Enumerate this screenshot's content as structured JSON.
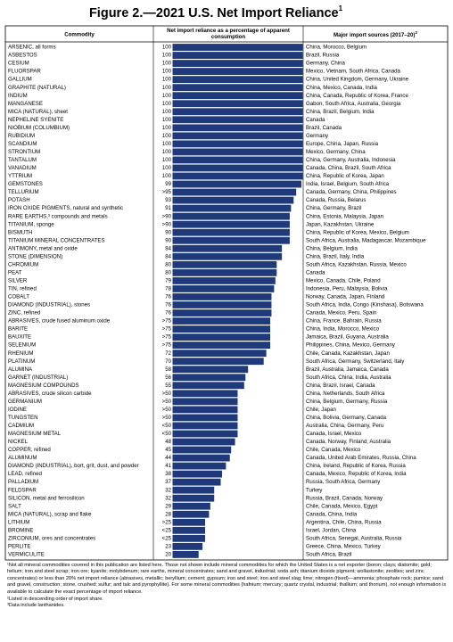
{
  "chart_data": {
    "type": "hbar",
    "title": "Figure 2.—2021 U.S. Net Import Reliance",
    "title_note": "1",
    "column_headers": {
      "commodity": "Commodity",
      "value": "Net import reliance as a percentage of apparent consumption",
      "sources": "Major import sources (2017–20)",
      "sources_note": "2"
    },
    "color": "#1f3a7a",
    "xlim": [
      0,
      100
    ],
    "categories": [
      "ARSENIC, all forms",
      "ASBESTOS",
      "CESIUM",
      "FLUORSPAR",
      "GALLIUM",
      "GRAPHITE (NATURAL)",
      "INDIUM",
      "MANGANESE",
      "MICA (NATURAL), sheet",
      "NEPHELINE SYENITE",
      "NIOBIUM (COLUMBIUM)",
      "RUBIDIUM",
      "SCANDIUM",
      "STRONTIUM",
      "TANTALUM",
      "VANADIUM",
      "YTTRIUM",
      "GEMSTONES",
      "TELLURIUM",
      "POTASH",
      "IRON OXIDE PIGMENTS, natural and synthetic",
      "RARE EARTHS,³ compounds and metals",
      "TITANIUM, sponge",
      "BISMUTH",
      "TITANIUM MINERAL CONCENTRATES",
      "ANTIMONY, metal and oxide",
      "STONE (DIMENSION)",
      "CHROMIUM",
      "PEAT",
      "SILVER",
      "TIN, refined",
      "COBALT",
      "DIAMOND (INDUSTRIAL), stones",
      "ZINC, refined",
      "ABRASIVES, crude fused aluminum oxide",
      "BARITE",
      "BAUXITE",
      "SELENIUM",
      "RHENIUM",
      "PLATINUM",
      "ALUMINA",
      "GARNET (INDUSTRIAL)",
      "MAGNESIUM COMPOUNDS",
      "ABRASIVES, crude silicon carbide",
      "GERMANIUM",
      "IODINE",
      "TUNGSTEN",
      "CADMIUM",
      "MAGNESIUM METAL",
      "NICKEL",
      "COPPER, refined",
      "ALUMINUM",
      "DIAMOND (INDUSTRIAL), bort, grit, dust, and powder",
      "LEAD, refined",
      "PALLADIUM",
      "FELDSPAR",
      "SILICON, metal and ferrosilicon",
      "SALT",
      "MICA (NATURAL), scrap and flake",
      "LITHIUM",
      "BROMINE",
      "ZIRCONIUM, ores and concentrates",
      "PERLITE",
      "VERMICULITE"
    ],
    "values": [
      100,
      100,
      100,
      100,
      100,
      100,
      100,
      100,
      100,
      100,
      100,
      100,
      100,
      100,
      100,
      100,
      100,
      99,
      95,
      93,
      91,
      90,
      90,
      90,
      90,
      84,
      84,
      80,
      80,
      79,
      78,
      76,
      76,
      76,
      75,
      75,
      75,
      75,
      72,
      70,
      58,
      56,
      55,
      50,
      50,
      50,
      50,
      50,
      50,
      48,
      45,
      44,
      41,
      38,
      37,
      32,
      32,
      29,
      28,
      25,
      25,
      25,
      23,
      20
    ],
    "value_labels": [
      "100",
      "100",
      "100",
      "100",
      "100",
      "100",
      "100",
      "100",
      "100",
      "100",
      "100",
      "100",
      "100",
      "100",
      "100",
      "100",
      "100",
      "99",
      ">95",
      "93",
      "91",
      ">90",
      ">90",
      "90",
      "90",
      "84",
      "84",
      "80",
      "80",
      "79",
      "78",
      "76",
      "76",
      "76",
      ">75",
      ">75",
      ">75",
      ">75",
      "72",
      "70",
      "58",
      "56",
      "55",
      ">50",
      ">50",
      ">50",
      ">50",
      "<50",
      "<50",
      "48",
      "45",
      "44",
      "41",
      "38",
      "37",
      "32",
      "32",
      "29",
      "28",
      ">25",
      "<25",
      "<25",
      "23",
      "20"
    ],
    "sources": [
      "China, Morocco, Belgium",
      "Brazil, Russia",
      "Germany, China",
      "Mexico, Vietnam, South Africa, Canada",
      "China, United Kingdom, Germany, Ukraine",
      "China, Mexico, Canada, India",
      "China, Canada, Republic of Korea, France",
      "Gabon, South Africa, Australia, Georgia",
      "China, Brazil, Belgium, India",
      "Canada",
      "Brazil, Canada",
      "Germany",
      "Europe, China, Japan, Russia",
      "Mexico, Germany, China",
      "China, Germany, Australia, Indonesia",
      "Canada, China, Brazil, South Africa",
      "China, Republic of Korea, Japan",
      "India, Israel, Belgium, South Africa",
      "Canada, Germany, China, Philippines",
      "Canada, Russia, Belarus",
      "China, Germany, Brazil",
      "China, Estonia, Malaysia, Japan",
      "Japan, Kazakhstan, Ukraine",
      "China, Republic of Korea, Mexico, Belgium",
      "South Africa, Australia, Madagascar, Mozambique",
      "China, Belgium, India",
      "China, Brazil, Italy, India",
      "South Africa, Kazakhstan, Russia, Mexico",
      "Canada",
      "Mexico, Canada, Chile, Poland",
      "Indonesia, Peru, Malaysia, Bolivia",
      "Norway, Canada, Japan, Finland",
      "South Africa, India, Congo (Kinshasa), Botswana",
      "Canada, Mexico, Peru, Spain",
      "China, France, Bahrain, Russia",
      "China, India, Morocco, Mexico",
      "Jamaica, Brazil, Guyana, Australia",
      "Philippines, China, Mexico, Germany",
      "Chile, Canada, Kazakhstan, Japan",
      "South Africa, Germany, Switzerland, Italy",
      "Brazil, Australia, Jamaica, Canada",
      "South Africa, China, India, Australia",
      "China, Brazil, Israel, Canada",
      "China, Netherlands, South Africa",
      "China, Belgium, Germany, Russia",
      "Chile, Japan",
      "China, Bolivia, Germany, Canada",
      "Australia, China, Germany, Peru",
      "Canada, Israel, Mexico",
      "Canada, Norway, Finland, Australia",
      "Chile, Canada, Mexico",
      "Canada, United Arab Emirates, Russia, China",
      "China, Ireland, Republic of Korea, Russia",
      "Canada, Mexico, Republic of Korea, India",
      "Russia, South Africa, Germany",
      "Turkey",
      "Russia, Brazil, Canada, Norway",
      "Chile, Canada, Mexico, Egypt",
      "Canada, China, India",
      "Argentina, Chile, China, Russia",
      "Israel, Jordan, China",
      "South Africa, Senegal, Australia, Russia",
      "Greece, China, Mexico, Turkey",
      "South Africa, Brazil"
    ],
    "footnotes": [
      "¹Not all mineral commodities covered in this publication are listed here. Those not shown include mineral commodities for which the United States is a net exporter (boron; clays; diatomite; gold; helium; iron and steel scrap; iron ore; kyanite; molybdenum; rare earths, mineral concentrates; sand and gravel, industrial; soda ash; titanium dioxide pigment; wollastonite; zeolites; and zinc concentrates) or less than 20% net import reliance (abrasives, metallic; beryllium; cement; gypsum; iron and steel; iron and steel slag; lime; nitrogen (fixed)—ammonia; phosphate rock; pumice; sand and gravel, construction; stone, crushed; sulfur; and talc and pyrophyllite). For some mineral commodities (hafnium; mercury; quartz crystal, industrial; thallium; and thorium), not enough information is available to calculate the exact percentage of import reliance.",
      "²Listed in descending order of import share.",
      "³Data include lanthanides."
    ]
  }
}
